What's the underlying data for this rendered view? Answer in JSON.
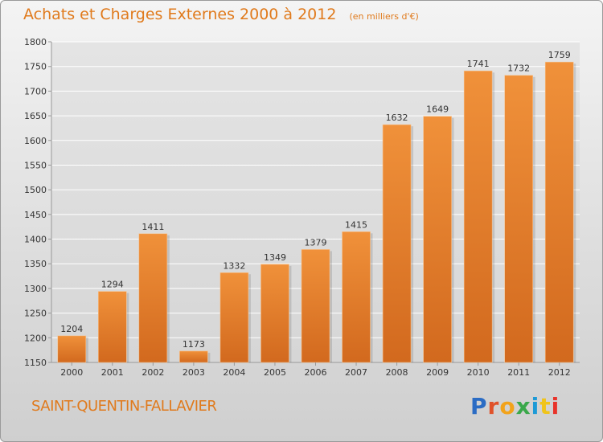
{
  "header": {
    "title": "Achats et Charges Externes 2000 à 2012",
    "unit": "(en milliers d'€)"
  },
  "footer": {
    "town": "SAINT-QUENTIN-FALLAVIER",
    "logo_text": "Proxiti",
    "logo_colors": [
      "#2b6cc4",
      "#e0522a",
      "#f2a31b",
      "#3aa84a",
      "#1d9ad6",
      "#f0c419",
      "#e8332a"
    ]
  },
  "chart_data": {
    "type": "bar",
    "categories": [
      "2000",
      "2001",
      "2002",
      "2003",
      "2004",
      "2005",
      "2006",
      "2007",
      "2008",
      "2009",
      "2010",
      "2011",
      "2012"
    ],
    "values": [
      1204,
      1294,
      1411,
      1173,
      1332,
      1349,
      1379,
      1415,
      1632,
      1649,
      1741,
      1732,
      1759
    ],
    "ylim": [
      1150,
      1800
    ],
    "yticks": [
      1150,
      1200,
      1250,
      1300,
      1350,
      1400,
      1450,
      1500,
      1550,
      1600,
      1650,
      1700,
      1750,
      1800
    ],
    "grid": true,
    "bar_color": "#f0913a",
    "bar_color_dark": "#d2691e"
  }
}
